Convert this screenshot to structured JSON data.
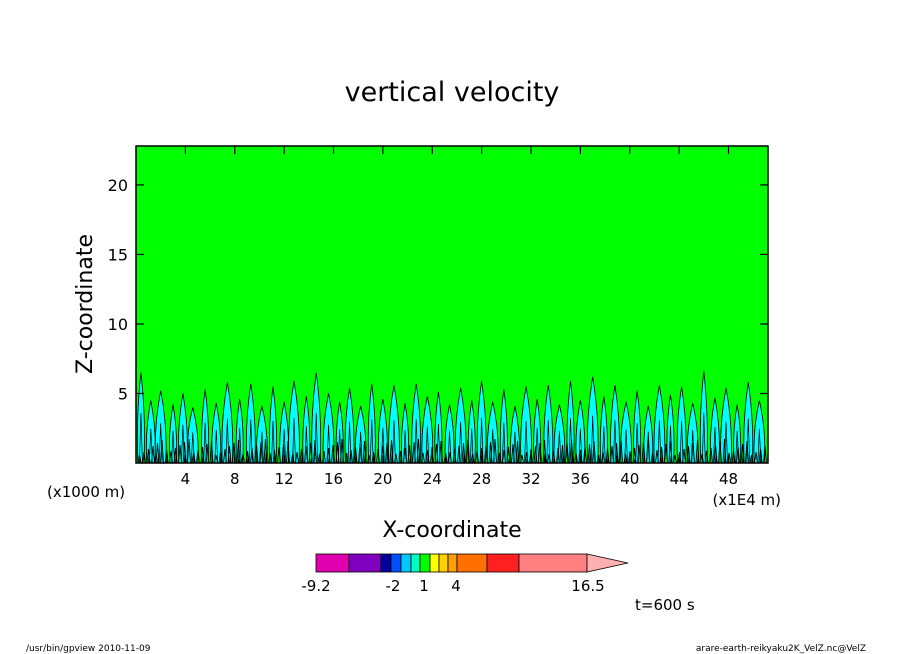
{
  "chart_data": {
    "type": "heatmap",
    "title": "vertical velocity",
    "xlabel": "X-coordinate",
    "ylabel": "Z-coordinate",
    "x_unit_left": "(x1000 m)",
    "x_unit_right": "(x1E4 m)",
    "x_ticks": [
      4,
      8,
      12,
      16,
      20,
      24,
      28,
      32,
      36,
      40,
      44,
      48
    ],
    "y_ticks": [
      5,
      10,
      15,
      20
    ],
    "xlim": [
      0,
      51.2
    ],
    "ylim": [
      0,
      22.8
    ],
    "background_level_color": "#00ff00",
    "updraft_color": "#00ffff",
    "contour_color": "#000000",
    "colorbar": {
      "colors": [
        "#e000b0",
        "#8000c0",
        "#0000a0",
        "#0050ff",
        "#00c8ff",
        "#00ffc0",
        "#00ff00",
        "#ffff00",
        "#ffd000",
        "#ffa000",
        "#ff7000",
        "#ff2020",
        "#ff8080",
        "#ffb0b0"
      ],
      "tick_labels": [
        "-9.2",
        "-2",
        "1",
        "4",
        "16.5"
      ]
    },
    "time_label": "t=600 s",
    "updraft_peaks_km": [
      [
        0.4,
        6.5
      ],
      [
        1.2,
        4.5
      ],
      [
        2.0,
        5.2
      ],
      [
        3.0,
        4.2
      ],
      [
        3.8,
        5.0
      ],
      [
        4.6,
        4.0
      ],
      [
        5.6,
        5.3
      ],
      [
        6.5,
        4.3
      ],
      [
        7.4,
        5.8
      ],
      [
        8.4,
        4.6
      ],
      [
        9.3,
        5.7
      ],
      [
        10.2,
        4.1
      ],
      [
        11.1,
        5.5
      ],
      [
        12.0,
        4.4
      ],
      [
        12.8,
        5.9
      ],
      [
        13.8,
        4.8
      ],
      [
        14.6,
        6.5
      ],
      [
        15.6,
        5.0
      ],
      [
        16.5,
        4.4
      ],
      [
        17.3,
        5.4
      ],
      [
        18.2,
        4.1
      ],
      [
        19.1,
        5.7
      ],
      [
        20.0,
        4.6
      ],
      [
        20.9,
        5.6
      ],
      [
        21.8,
        4.3
      ],
      [
        22.7,
        5.7
      ],
      [
        23.6,
        4.8
      ],
      [
        24.5,
        5.1
      ],
      [
        25.4,
        4.2
      ],
      [
        26.3,
        5.4
      ],
      [
        27.2,
        4.5
      ],
      [
        28.0,
        5.9
      ],
      [
        28.9,
        4.4
      ],
      [
        29.8,
        5.3
      ],
      [
        30.7,
        4.1
      ],
      [
        31.6,
        5.5
      ],
      [
        32.5,
        4.6
      ],
      [
        33.4,
        5.6
      ],
      [
        34.3,
        4.2
      ],
      [
        35.2,
        5.9
      ],
      [
        36.0,
        4.5
      ],
      [
        37.0,
        6.2
      ],
      [
        37.9,
        4.8
      ],
      [
        38.8,
        5.6
      ],
      [
        39.7,
        4.4
      ],
      [
        40.6,
        5.2
      ],
      [
        41.5,
        4.1
      ],
      [
        42.4,
        5.6
      ],
      [
        43.3,
        4.9
      ],
      [
        44.2,
        5.5
      ],
      [
        45.1,
        4.3
      ],
      [
        46.0,
        6.6
      ],
      [
        46.9,
        4.7
      ],
      [
        47.8,
        5.4
      ],
      [
        48.7,
        4.2
      ],
      [
        49.6,
        5.8
      ],
      [
        50.5,
        4.5
      ]
    ]
  },
  "footer": {
    "left": "/usr/bin/gpview   2010-11-09",
    "right": "arare-earth-reikyaku2K_VelZ.nc@VelZ"
  }
}
